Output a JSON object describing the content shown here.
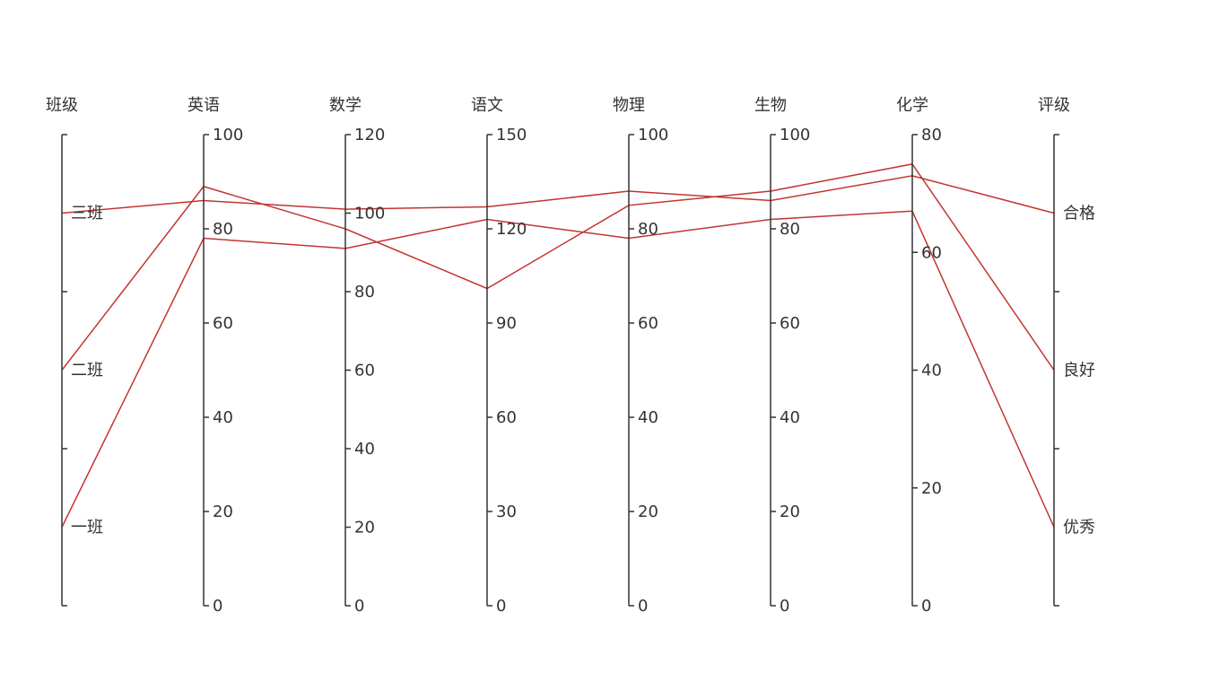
{
  "chart_data": {
    "type": "parallel",
    "title": "",
    "line_color": "#c23531",
    "axes": [
      {
        "name": "班级",
        "type": "category",
        "categories": [
          "一班",
          "二班",
          "三班"
        ]
      },
      {
        "name": "英语",
        "type": "value",
        "min": 0,
        "max": 100,
        "ticks": [
          0,
          20,
          40,
          60,
          80,
          100
        ]
      },
      {
        "name": "数学",
        "type": "value",
        "min": 0,
        "max": 120,
        "ticks": [
          0,
          20,
          40,
          60,
          80,
          100,
          120
        ]
      },
      {
        "name": "语文",
        "type": "value",
        "min": 0,
        "max": 150,
        "ticks": [
          0,
          30,
          60,
          90,
          120,
          150
        ]
      },
      {
        "name": "物理",
        "type": "value",
        "min": 0,
        "max": 100,
        "ticks": [
          0,
          20,
          40,
          60,
          80,
          100
        ]
      },
      {
        "name": "生物",
        "type": "value",
        "min": 0,
        "max": 100,
        "ticks": [
          0,
          20,
          40,
          60,
          80,
          100
        ]
      },
      {
        "name": "化学",
        "type": "value",
        "min": 0,
        "max": 80,
        "ticks": [
          0,
          20,
          40,
          60,
          80
        ]
      },
      {
        "name": "评级",
        "type": "category",
        "categories": [
          "优秀",
          "良好",
          "合格"
        ]
      }
    ],
    "series": [
      {
        "values": [
          "一班",
          78,
          91,
          123,
          78,
          82,
          67,
          "优秀"
        ]
      },
      {
        "values": [
          "二班",
          89,
          96,
          101,
          85,
          88,
          75,
          "良好"
        ]
      },
      {
        "values": [
          "三班",
          86,
          101,
          127,
          88,
          86,
          73,
          "合格"
        ]
      }
    ]
  }
}
